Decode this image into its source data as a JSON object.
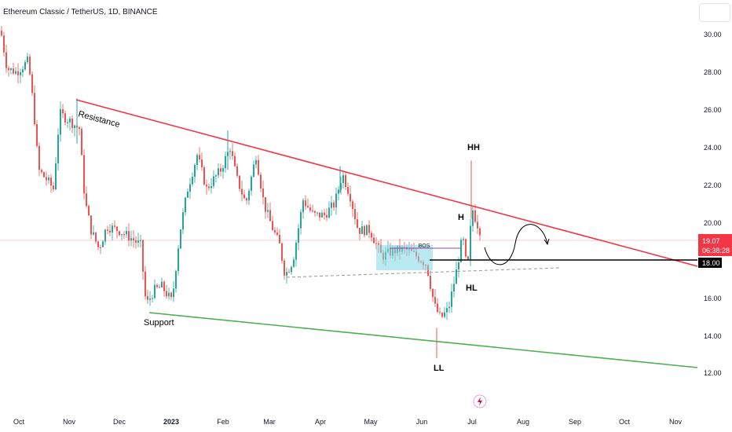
{
  "chart_title": "Ethereum Classic / TetherUS, 1D, BINANCE",
  "colors": {
    "up": "#26a69a",
    "down": "#ef5350",
    "resistance": "#f23645",
    "support": "#4caf50",
    "level": "#000000",
    "box": "#7fd8e8",
    "price_tag_bg": "#f23645",
    "level_tag_bg": "#000000"
  },
  "chart_data": {
    "type": "candlestick",
    "y_ticks": [
      "30.00",
      "28.00",
      "26.00",
      "24.00",
      "22.00",
      "20.00",
      "16.00",
      "14.00",
      "12.00"
    ],
    "x_ticks": [
      "Oct",
      "Nov",
      "Dec",
      "2023",
      "Feb",
      "Mar",
      "Apr",
      "May",
      "Jun",
      "Jul",
      "Aug",
      "Sep",
      "Oct",
      "Nov"
    ],
    "ylim": [
      11.5,
      31.0
    ],
    "current_price": "19.07",
    "countdown": "06:38:28",
    "level_price": "18.00",
    "level_value": 18.0,
    "trendlines": [
      {
        "name": "Resistance",
        "from": [
          "Nov",
          26.6
        ],
        "to": [
          "Nov end",
          17.7
        ]
      },
      {
        "name": "Support",
        "from": [
          "Dec end",
          15.2
        ],
        "to": [
          "Nov end",
          12.2
        ]
      }
    ],
    "annotations": [
      "Resistance",
      "Support",
      "HH",
      "H",
      "HL",
      "LL",
      "BOS"
    ],
    "key_points": [
      {
        "label": "Resistance",
        "date": "Nov",
        "value": 26.6
      },
      {
        "label": "Support",
        "date": "Dec end",
        "value": 15.2
      },
      {
        "label": "LL",
        "date": "Jun",
        "value": 12.8
      },
      {
        "label": "HH",
        "date": "Jul",
        "value": 23.3
      },
      {
        "label": "H",
        "date": "Jul",
        "value": 20.5
      },
      {
        "label": "HL",
        "date": "Jul",
        "value": 17.5
      }
    ]
  }
}
